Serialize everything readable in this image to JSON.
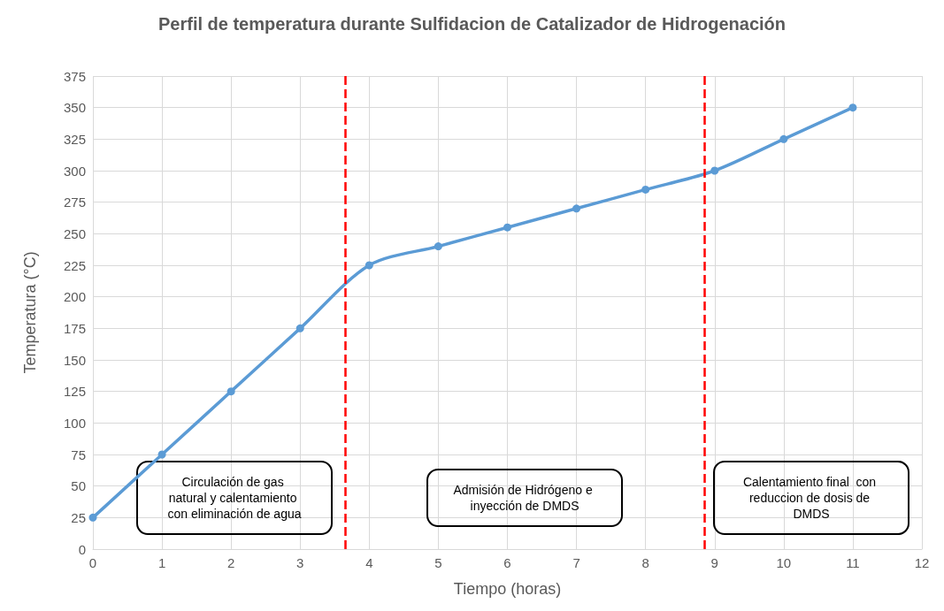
{
  "chart_data": {
    "type": "line",
    "title": "Perfil de temperatura durante Sulfidacion de Catalizador de Hidrogenación",
    "xlabel": "Tiempo (horas)",
    "ylabel": "Temperatura (°C)",
    "x": [
      0,
      1,
      2,
      3,
      4,
      5,
      6,
      7,
      8,
      9,
      10,
      11
    ],
    "series": [
      {
        "color": "#5b9bd5",
        "values": [
          25,
          75,
          125,
          175,
          225,
          240,
          255,
          270,
          285,
          300,
          325,
          350
        ]
      }
    ],
    "xlim": [
      0,
      12
    ],
    "xticks": [
      0,
      1,
      2,
      3,
      4,
      5,
      6,
      7,
      8,
      9,
      10,
      11,
      12
    ],
    "ylim": [
      0,
      375
    ],
    "yticks": [
      0,
      25,
      50,
      75,
      100,
      125,
      150,
      175,
      200,
      225,
      250,
      275,
      300,
      325,
      350,
      375
    ],
    "grid": true,
    "marker": "circle",
    "line_style": "solid",
    "ref_lines": [
      {
        "axis": "x",
        "value": 3.65,
        "color": "#ff0000",
        "line_style": "dashed"
      },
      {
        "axis": "x",
        "value": 8.85,
        "color": "#ff0000",
        "line_style": "dashed"
      }
    ],
    "annotations": [
      "Circulación de gas natural y calentamiento con eliminación de agua",
      "Admisión de Hidrógeno e inyección de DMDS",
      "Calentamiento final  con reduccion de dosis de DMDS"
    ]
  }
}
